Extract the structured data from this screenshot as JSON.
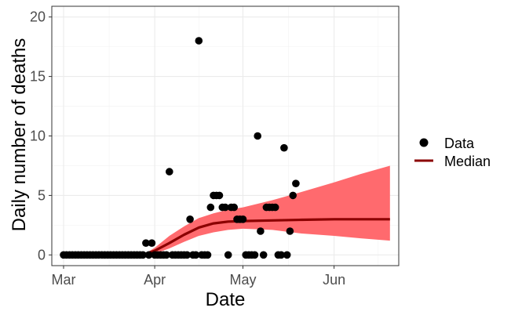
{
  "chart_data": {
    "type": "scatter",
    "xlabel": "Date",
    "ylabel": "Daily number of deaths",
    "x_ticks": [
      "Mar",
      "Apr",
      "May",
      "Jun"
    ],
    "y_ticks": [
      "0",
      "5",
      "10",
      "15",
      "20"
    ],
    "xlim": [
      "2020-02-26",
      "2020-06-23"
    ],
    "ylim": [
      -0.9,
      20.9
    ],
    "grid": true,
    "legend_position": "right",
    "legend": [
      {
        "label": "Data",
        "marker": "point"
      },
      {
        "label": "Median",
        "marker": "line"
      }
    ],
    "colors": {
      "data": "#000000",
      "median": "#8b0000",
      "ribbon": "#ff6a6e"
    },
    "data_points": [
      [
        "2020-03-01",
        0
      ],
      [
        "2020-03-02",
        0
      ],
      [
        "2020-03-03",
        0
      ],
      [
        "2020-03-04",
        0
      ],
      [
        "2020-03-05",
        0
      ],
      [
        "2020-03-06",
        0
      ],
      [
        "2020-03-07",
        0
      ],
      [
        "2020-03-08",
        0
      ],
      [
        "2020-03-09",
        0
      ],
      [
        "2020-03-10",
        0
      ],
      [
        "2020-03-11",
        0
      ],
      [
        "2020-03-12",
        0
      ],
      [
        "2020-03-13",
        0
      ],
      [
        "2020-03-14",
        0
      ],
      [
        "2020-03-15",
        0
      ],
      [
        "2020-03-16",
        0
      ],
      [
        "2020-03-17",
        0
      ],
      [
        "2020-03-18",
        0
      ],
      [
        "2020-03-19",
        0
      ],
      [
        "2020-03-20",
        0
      ],
      [
        "2020-03-21",
        0
      ],
      [
        "2020-03-22",
        0
      ],
      [
        "2020-03-23",
        0
      ],
      [
        "2020-03-24",
        0
      ],
      [
        "2020-03-25",
        0
      ],
      [
        "2020-03-26",
        0
      ],
      [
        "2020-03-27",
        0
      ],
      [
        "2020-03-28",
        0
      ],
      [
        "2020-03-29",
        1
      ],
      [
        "2020-03-30",
        0
      ],
      [
        "2020-03-31",
        1
      ],
      [
        "2020-04-01",
        0
      ],
      [
        "2020-04-02",
        0
      ],
      [
        "2020-04-03",
        0
      ],
      [
        "2020-04-04",
        0
      ],
      [
        "2020-04-05",
        0
      ],
      [
        "2020-04-06",
        7
      ],
      [
        "2020-04-07",
        0
      ],
      [
        "2020-04-08",
        0
      ],
      [
        "2020-04-09",
        0
      ],
      [
        "2020-04-10",
        0
      ],
      [
        "2020-04-11",
        0
      ],
      [
        "2020-04-12",
        0
      ],
      [
        "2020-04-13",
        3
      ],
      [
        "2020-04-14",
        0
      ],
      [
        "2020-04-15",
        0
      ],
      [
        "2020-04-16",
        18
      ],
      [
        "2020-04-17",
        0
      ],
      [
        "2020-04-18",
        0
      ],
      [
        "2020-04-19",
        0
      ],
      [
        "2020-04-20",
        4
      ],
      [
        "2020-04-21",
        5
      ],
      [
        "2020-04-22",
        5
      ],
      [
        "2020-04-23",
        5
      ],
      [
        "2020-04-24",
        4
      ],
      [
        "2020-04-25",
        4
      ],
      [
        "2020-04-26",
        0
      ],
      [
        "2020-04-27",
        4
      ],
      [
        "2020-04-28",
        4
      ],
      [
        "2020-04-29",
        3
      ],
      [
        "2020-04-30",
        3
      ],
      [
        "2020-05-01",
        3
      ],
      [
        "2020-05-02",
        0
      ],
      [
        "2020-05-03",
        0
      ],
      [
        "2020-05-04",
        0
      ],
      [
        "2020-05-05",
        0
      ],
      [
        "2020-05-06",
        10
      ],
      [
        "2020-05-07",
        2
      ],
      [
        "2020-05-08",
        0
      ],
      [
        "2020-05-09",
        4
      ],
      [
        "2020-05-10",
        4
      ],
      [
        "2020-05-11",
        4
      ],
      [
        "2020-05-12",
        4
      ],
      [
        "2020-05-13",
        0
      ],
      [
        "2020-05-14",
        0
      ],
      [
        "2020-05-15",
        9
      ],
      [
        "2020-05-16",
        0
      ],
      [
        "2020-05-17",
        2
      ],
      [
        "2020-05-18",
        5
      ],
      [
        "2020-05-19",
        6
      ]
    ],
    "median": [
      [
        "2020-03-01",
        0
      ],
      [
        "2020-03-28",
        0
      ],
      [
        "2020-04-01",
        0.35
      ],
      [
        "2020-04-06",
        1.0
      ],
      [
        "2020-04-11",
        1.7
      ],
      [
        "2020-04-16",
        2.3
      ],
      [
        "2020-04-21",
        2.65
      ],
      [
        "2020-04-26",
        2.8
      ],
      [
        "2020-05-01",
        2.85
      ],
      [
        "2020-05-11",
        2.9
      ],
      [
        "2020-05-21",
        2.95
      ],
      [
        "2020-06-01",
        3.0
      ],
      [
        "2020-06-10",
        3.0
      ],
      [
        "2020-06-20",
        3.0
      ]
    ],
    "ribbon_lower": [
      [
        "2020-03-28",
        0
      ],
      [
        "2020-04-01",
        0.1
      ],
      [
        "2020-04-06",
        0.55
      ],
      [
        "2020-04-11",
        1.1
      ],
      [
        "2020-04-16",
        1.6
      ],
      [
        "2020-04-21",
        1.9
      ],
      [
        "2020-04-26",
        2.1
      ],
      [
        "2020-05-01",
        2.2
      ],
      [
        "2020-05-11",
        2.1
      ],
      [
        "2020-05-21",
        1.8
      ],
      [
        "2020-06-01",
        1.6
      ],
      [
        "2020-06-10",
        1.4
      ],
      [
        "2020-06-20",
        1.2
      ]
    ],
    "ribbon_upper": [
      [
        "2020-03-28",
        0
      ],
      [
        "2020-04-01",
        0.6
      ],
      [
        "2020-04-06",
        1.6
      ],
      [
        "2020-04-11",
        2.4
      ],
      [
        "2020-04-16",
        3.1
      ],
      [
        "2020-04-21",
        3.5
      ],
      [
        "2020-04-26",
        3.8
      ],
      [
        "2020-05-01",
        4.0
      ],
      [
        "2020-05-11",
        4.6
      ],
      [
        "2020-05-21",
        5.3
      ],
      [
        "2020-06-01",
        6.1
      ],
      [
        "2020-06-10",
        6.8
      ],
      [
        "2020-06-20",
        7.5
      ]
    ]
  }
}
